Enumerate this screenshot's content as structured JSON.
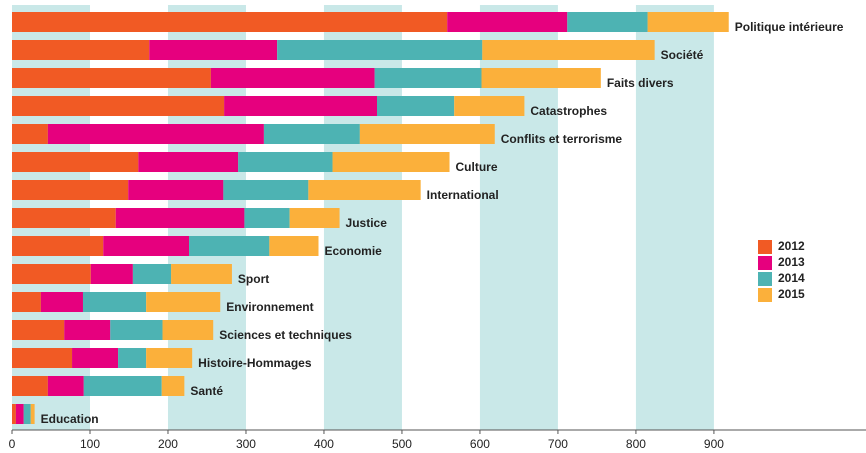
{
  "chart_data": {
    "type": "bar",
    "orientation": "horizontal",
    "stacked": true,
    "categories": [
      "Politique intérieure",
      "Société",
      "Faits divers",
      "Catastrophes",
      "Conflits et terrorisme",
      "Culture",
      "International",
      "Justice",
      "Economie",
      "Sport",
      "Environnement",
      "Sciences et techniques",
      "Histoire-Hommages",
      "Santé",
      "Education"
    ],
    "series": [
      {
        "name": "2012",
        "color": "#f15a24",
        "values": [
          558,
          176,
          255,
          272,
          46,
          162,
          149,
          133,
          117,
          101,
          37,
          67,
          77,
          46,
          5
        ]
      },
      {
        "name": "2013",
        "color": "#e6007e",
        "values": [
          154,
          164,
          210,
          196,
          277,
          128,
          122,
          165,
          110,
          54,
          54,
          59,
          59,
          46,
          10
        ]
      },
      {
        "name": "2014",
        "color": "#4db3b3",
        "values": [
          103,
          263,
          137,
          99,
          123,
          121,
          109,
          58,
          103,
          49,
          81,
          67,
          36,
          100,
          9
        ]
      },
      {
        "name": "2015",
        "color": "#fbb03b",
        "values": [
          104,
          221,
          153,
          90,
          173,
          150,
          144,
          64,
          63,
          78,
          95,
          65,
          59,
          29,
          5
        ]
      }
    ],
    "xlim": [
      0,
      1095
    ],
    "xticks": [
      0,
      100,
      200,
      300,
      400,
      500,
      600,
      700,
      800,
      900
    ],
    "bands": true,
    "band_color": "#c9e8e8",
    "legend": "right"
  }
}
